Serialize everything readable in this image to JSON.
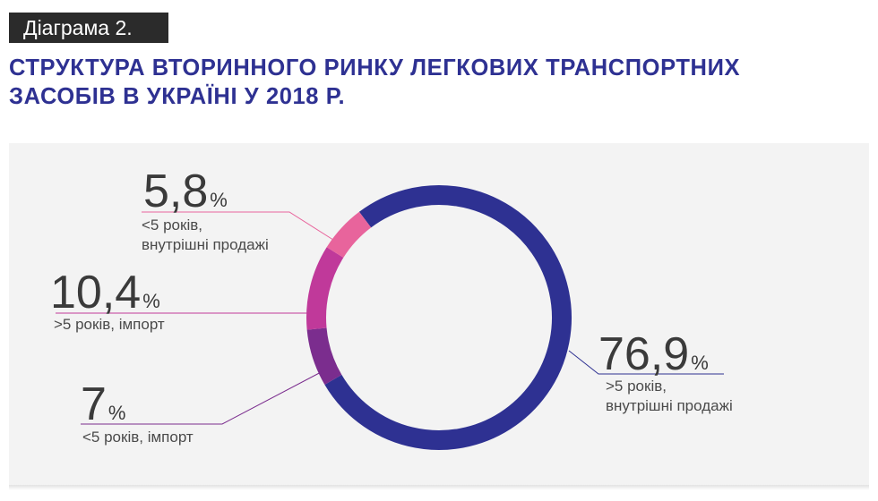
{
  "header": {
    "tag": "Діаграма 2.",
    "title_line1": "СТРУКТУРА ВТОРИННОГО РИНКУ ЛЕГКОВИХ ТРАНСПОРТНИХ",
    "title_line2": "ЗАСОБІВ В УКРАЇНІ У 2018 Р."
  },
  "chart_data": {
    "type": "pie",
    "variant": "donut",
    "slices": [
      {
        "value_label": "76,9",
        "value": 76.9,
        "unit": "%",
        "label_line1": ">5 років,",
        "label_line2": "внутрішні продажі",
        "color": "#2e3192"
      },
      {
        "value_label": "7",
        "value": 7.0,
        "unit": "%",
        "label_line1": "<5 років, імпорт",
        "label_line2": "",
        "color": "#7b2d8e"
      },
      {
        "value_label": "10,4",
        "value": 10.4,
        "unit": "%",
        "label_line1": ">5 років, імпорт",
        "label_line2": "",
        "color": "#c0399a"
      },
      {
        "value_label": "5,8",
        "value": 5.8,
        "unit": "%",
        "label_line1": "<5 років,",
        "label_line2": "внутрішні продажі",
        "color": "#e8649c"
      }
    ]
  },
  "colors": {
    "title": "#2e3192",
    "panel": "#f3f3f3",
    "tag_bg": "#2b2b2b"
  }
}
